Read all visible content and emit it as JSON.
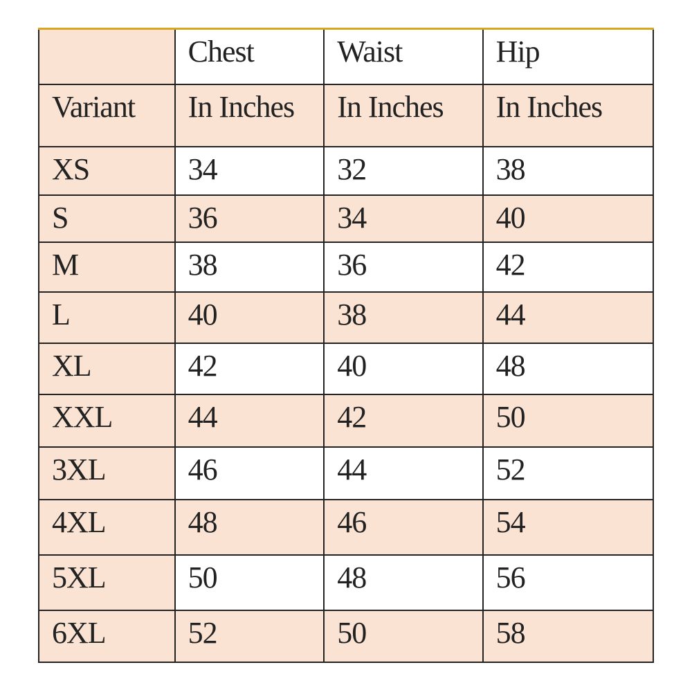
{
  "colors": {
    "peach": "#fbe3d3",
    "white": "#ffffff",
    "top_border": "#d9a520"
  },
  "header": {
    "row1": [
      "",
      "Chest",
      "Waist",
      "Hip"
    ],
    "row2": [
      "Variant",
      "In Inches",
      "In Inches",
      "In Inches"
    ]
  },
  "rows": [
    [
      "XS",
      "34",
      "32",
      "38"
    ],
    [
      "S",
      "36",
      "34",
      "40"
    ],
    [
      "M",
      "38",
      "36",
      "42"
    ],
    [
      "L",
      "40",
      "38",
      "44"
    ],
    [
      "XL",
      "42",
      "40",
      "48"
    ],
    [
      "XXL",
      "44",
      "42",
      "50"
    ],
    [
      "3XL",
      "46",
      "44",
      "52"
    ],
    [
      "4XL",
      "48",
      "46",
      "54"
    ],
    [
      "5XL",
      "50",
      "48",
      "56"
    ],
    [
      "6XL",
      "52",
      "50",
      "58"
    ]
  ]
}
